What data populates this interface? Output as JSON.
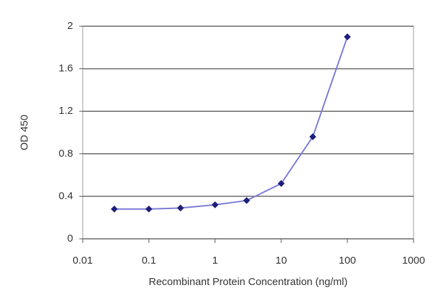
{
  "chart_data": {
    "type": "line",
    "xlabel": "Recombinant Protein Concentration (ng/ml)",
    "ylabel": "OD 450",
    "x": [
      0.03,
      0.1,
      0.3,
      1,
      3,
      10,
      30,
      100
    ],
    "series": [
      {
        "color": "#1f1f7a",
        "line_color": "#7a7ad6",
        "values": [
          0.28,
          0.28,
          0.29,
          0.32,
          0.36,
          0.52,
          0.96,
          1.9
        ]
      }
    ],
    "xscale": "log",
    "xlim": [
      0.01,
      1000
    ],
    "xticks": [
      0.01,
      0.1,
      1,
      10,
      100,
      1000
    ],
    "ylim": [
      0,
      2
    ],
    "yticks": [
      0,
      0.4,
      0.8,
      1.2,
      1.6,
      2
    ],
    "grid": true
  }
}
